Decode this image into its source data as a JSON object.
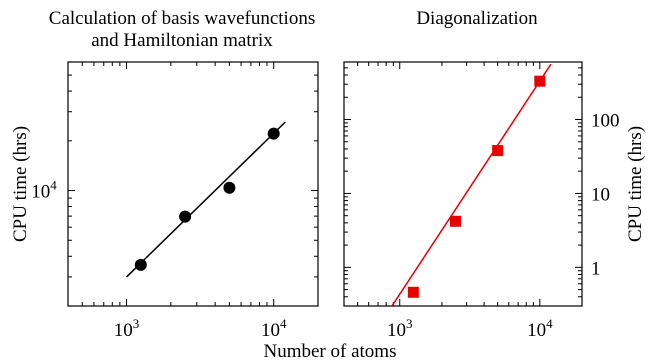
{
  "chart_data": [
    {
      "type": "scatter",
      "title": "Calculation of basis wavefunctions\nand Hamiltonian matrix",
      "xlabel": "Number of atoms",
      "ylabel": "CPU time (hrs)",
      "x_scale": "log",
      "y_scale": "log",
      "xlim": [
        400,
        20000
      ],
      "ylim": [
        2000,
        60000
      ],
      "x_ticks": [
        1000,
        10000
      ],
      "x_tick_labels": [
        {
          "base": "10",
          "exp": "3"
        },
        {
          "base": "10",
          "exp": "4"
        }
      ],
      "y_ticks": [
        10000
      ],
      "y_tick_labels": [
        {
          "base": "10",
          "exp": "4"
        }
      ],
      "grid": false,
      "series": [
        {
          "marker": "circle",
          "color": "#000000",
          "x": [
            1250,
            2500,
            5000,
            10000
          ],
          "y": [
            3550,
            6950,
            10400,
            22100
          ]
        }
      ],
      "fit": {
        "color": "#000000",
        "x": [
          1000,
          12000
        ],
        "y": [
          3000,
          26000
        ]
      }
    },
    {
      "type": "scatter",
      "title": "Diagonalization",
      "xlabel": "Number of atoms",
      "ylabel": "CPU time (hrs)",
      "ylabel_position": "right",
      "x_scale": "log",
      "y_scale": "log",
      "xlim": [
        400,
        20000
      ],
      "ylim": [
        0.3,
        600
      ],
      "x_ticks": [
        1000,
        10000
      ],
      "x_tick_labels": [
        {
          "base": "10",
          "exp": "3"
        },
        {
          "base": "10",
          "exp": "4"
        }
      ],
      "y_ticks": [
        1,
        10,
        100
      ],
      "y_tick_labels": [
        "1",
        "10",
        "100"
      ],
      "grid": false,
      "series": [
        {
          "marker": "square",
          "color": "#e60000",
          "x": [
            1250,
            2500,
            5000,
            10000
          ],
          "y": [
            0.46,
            4.2,
            38,
            330
          ]
        }
      ],
      "fit": {
        "color": "#e60000",
        "x": [
          880,
          12000
        ],
        "y": [
          0.3,
          560
        ]
      }
    }
  ]
}
